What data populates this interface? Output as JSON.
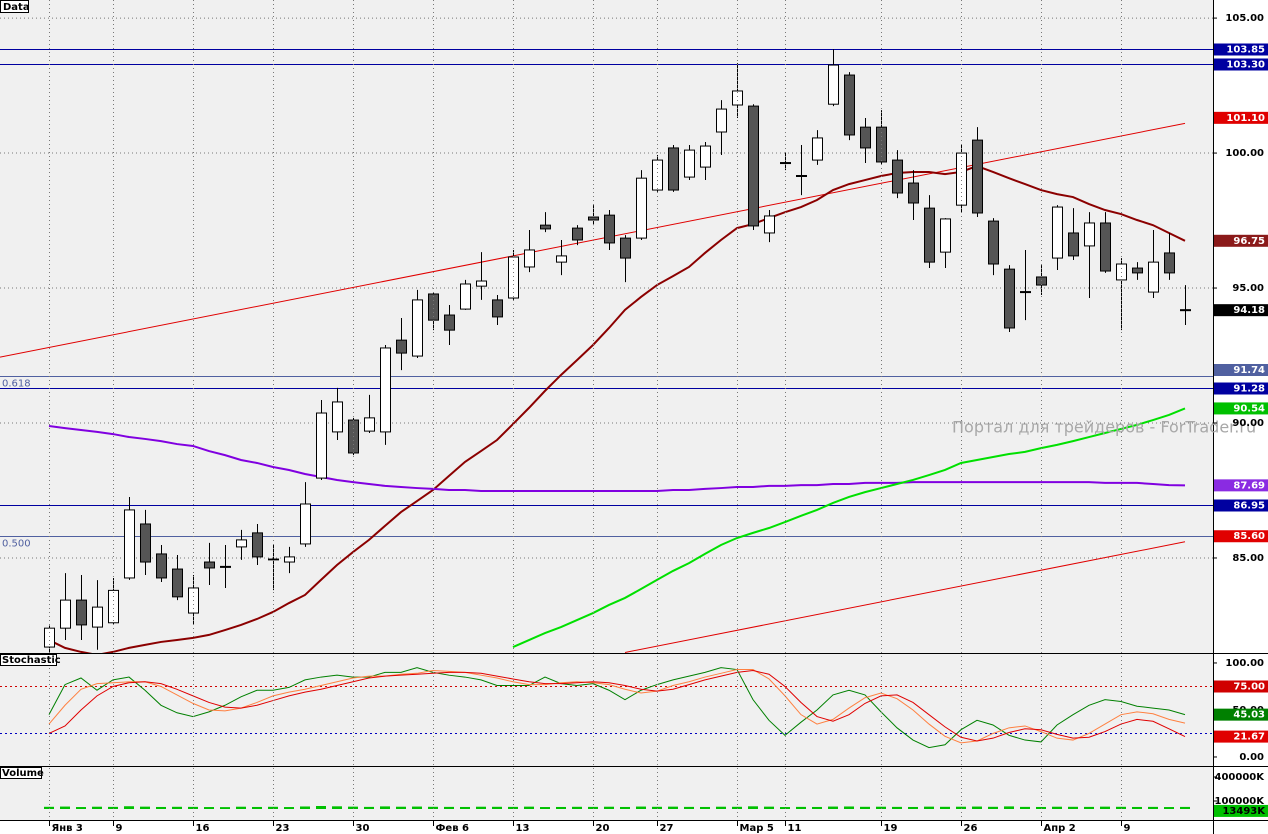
{
  "chart_data": [
    {
      "type": "candlestick",
      "title": "Data",
      "categories": [
        "Янв 3",
        null,
        null,
        null,
        "9",
        null,
        null,
        null,
        null,
        "16",
        null,
        null,
        null,
        null,
        "23",
        null,
        null,
        null,
        null,
        "30",
        null,
        null,
        null,
        null,
        "Фев 6",
        null,
        null,
        null,
        null,
        "13",
        null,
        null,
        null,
        null,
        "20",
        null,
        null,
        null,
        "27",
        null,
        null,
        null,
        null,
        "Мар 5",
        null,
        null,
        "11",
        null,
        null,
        null,
        null,
        null,
        "19",
        null,
        null,
        null,
        null,
        "26",
        null,
        null,
        null,
        null,
        "Апр 2",
        null,
        null,
        null,
        null,
        "9",
        null,
        null,
        null,
        null
      ],
      "open": [
        81.7,
        82.4,
        83.44,
        82.44,
        82.6,
        84.26,
        86.26,
        85.15,
        84.59,
        82.96,
        84.85,
        84.67,
        85.41,
        85.93,
        84.96,
        84.85,
        85.52,
        87.96,
        89.67,
        90.11,
        89.7,
        89.67,
        93.07,
        92.48,
        94.78,
        94.0,
        94.22,
        95.07,
        94.56,
        94.63,
        95.78,
        97.33,
        95.96,
        97.22,
        97.63,
        97.7,
        96.85,
        96.85,
        98.63,
        100.19,
        99.11,
        99.48,
        100.78,
        101.78,
        101.74,
        97.04,
        99.63,
        99.15,
        99.74,
        101.81,
        102.89,
        100.96,
        100.96,
        99.74,
        98.89,
        97.96,
        96.33,
        98.07,
        100.48,
        97.48,
        95.7,
        94.85,
        95.41,
        96.11,
        97.04,
        96.56,
        97.41,
        95.3,
        95.74,
        94.85,
        96.3,
        94.18
      ],
      "high": [
        82.5,
        84.44,
        84.37,
        84.18,
        84.26,
        87.26,
        86.78,
        85.48,
        85.11,
        84.37,
        85.56,
        85.48,
        86.04,
        86.26,
        85.48,
        85.41,
        87.81,
        90.85,
        91.3,
        90.19,
        91.04,
        92.89,
        93.89,
        94.93,
        94.85,
        94.37,
        95.3,
        96.33,
        94.74,
        96.41,
        97.15,
        97.81,
        96.78,
        97.33,
        98.07,
        97.89,
        96.96,
        99.37,
        99.93,
        100.3,
        100.3,
        100.41,
        101.96,
        103.33,
        101.81,
        97.89,
        100.0,
        100.3,
        100.85,
        103.85,
        103.0,
        101.3,
        101.59,
        100.11,
        99.37,
        98.44,
        97.59,
        100.3,
        100.96,
        97.59,
        95.85,
        96.41,
        95.85,
        98.07,
        97.96,
        97.81,
        97.81,
        96.11,
        95.96,
        97.15,
        97.04,
        95.11
      ],
      "low": [
        81.5,
        81.96,
        81.96,
        81.6,
        82.52,
        84.19,
        84.37,
        84.11,
        83.44,
        82.52,
        84.0,
        83.89,
        84.93,
        84.74,
        83.81,
        84.44,
        85.41,
        87.89,
        89.37,
        88.81,
        89.63,
        89.19,
        91.96,
        92.41,
        93.44,
        92.89,
        94.19,
        94.56,
        93.63,
        94.56,
        95.59,
        97.07,
        95.48,
        96.59,
        97.33,
        96.41,
        95.22,
        96.78,
        98.56,
        98.56,
        99.0,
        99.0,
        99.93,
        101.3,
        97.15,
        96.7,
        99.37,
        98.44,
        99.56,
        101.74,
        100.48,
        99.63,
        99.56,
        98.33,
        97.52,
        95.74,
        95.74,
        97.81,
        97.63,
        95.48,
        93.37,
        93.81,
        94.74,
        95.67,
        96.04,
        94.63,
        95.56,
        93.44,
        95.3,
        94.63,
        95.3,
        93.63
      ],
      "close": [
        82.4,
        83.44,
        82.52,
        83.18,
        83.8,
        86.78,
        84.85,
        84.26,
        83.56,
        83.89,
        84.63,
        84.67,
        85.67,
        85.04,
        84.93,
        85.04,
        87.0,
        90.37,
        90.78,
        88.89,
        90.19,
        92.78,
        92.59,
        94.56,
        93.81,
        93.44,
        95.15,
        95.26,
        93.93,
        96.15,
        96.41,
        97.19,
        96.19,
        96.78,
        97.52,
        96.67,
        96.11,
        99.07,
        99.74,
        98.63,
        100.11,
        100.26,
        101.63,
        102.3,
        97.3,
        97.67,
        99.63,
        99.15,
        100.56,
        103.26,
        100.67,
        100.19,
        99.67,
        98.52,
        98.15,
        95.96,
        97.56,
        100.0,
        97.78,
        95.89,
        93.52,
        94.85,
        95.11,
        98.0,
        96.19,
        97.41,
        95.63,
        95.89,
        95.56,
        95.96,
        95.56,
        94.18
      ],
      "up_color": "#ffffff",
      "down_color": "#555555",
      "last_close_color": "#000000",
      "ylim": [
        81.48,
        105.67
      ],
      "yticks": [
        {
          "value": 105,
          "label": "105.00"
        },
        {
          "value": 100,
          "label": "100.00"
        },
        {
          "value": 95,
          "label": "95.00"
        },
        {
          "value": 90,
          "label": "90.00"
        },
        {
          "value": 85,
          "label": "85.00"
        }
      ],
      "grid": true,
      "series": [
        {
          "color": "#8b0000",
          "label_color": "#8b1a1a",
          "values": [
            81.96,
            81.67,
            81.52,
            81.41,
            81.52,
            81.67,
            81.78,
            81.89,
            81.96,
            82.04,
            82.15,
            82.33,
            82.52,
            82.74,
            83.0,
            83.33,
            83.63,
            84.19,
            84.74,
            85.22,
            85.67,
            86.19,
            86.7,
            87.11,
            87.52,
            88.04,
            88.56,
            88.96,
            89.37,
            89.96,
            90.56,
            91.19,
            91.78,
            92.33,
            92.89,
            93.52,
            94.19,
            94.67,
            95.11,
            95.44,
            95.78,
            96.3,
            96.78,
            97.22,
            97.37,
            97.59,
            97.81,
            98.0,
            98.26,
            98.63,
            98.85,
            99.0,
            99.15,
            99.26,
            99.3,
            99.3,
            99.22,
            99.3,
            99.52,
            99.3,
            99.07,
            98.85,
            98.63,
            98.48,
            98.37,
            98.11,
            97.89,
            97.74,
            97.52,
            97.33,
            97.04,
            96.75
          ]
        },
        {
          "color": "#8000e0",
          "label_color": "#8a2be2",
          "values": [
            89.89,
            89.81,
            89.74,
            89.67,
            89.59,
            89.48,
            89.41,
            89.33,
            89.22,
            89.15,
            88.96,
            88.81,
            88.63,
            88.52,
            88.37,
            88.26,
            88.11,
            88.0,
            87.89,
            87.81,
            87.74,
            87.67,
            87.63,
            87.59,
            87.56,
            87.52,
            87.52,
            87.48,
            87.48,
            87.48,
            87.48,
            87.48,
            87.48,
            87.48,
            87.48,
            87.48,
            87.48,
            87.48,
            87.48,
            87.52,
            87.52,
            87.56,
            87.59,
            87.63,
            87.63,
            87.67,
            87.67,
            87.7,
            87.7,
            87.74,
            87.74,
            87.78,
            87.78,
            87.78,
            87.81,
            87.81,
            87.81,
            87.81,
            87.81,
            87.81,
            87.81,
            87.81,
            87.81,
            87.81,
            87.81,
            87.81,
            87.78,
            87.78,
            87.78,
            87.74,
            87.7,
            87.69
          ]
        },
        {
          "color": "#00e000",
          "label_color": "#00c000",
          "values": [
            null,
            null,
            null,
            null,
            null,
            null,
            null,
            null,
            null,
            null,
            null,
            null,
            null,
            null,
            null,
            null,
            null,
            null,
            null,
            null,
            null,
            null,
            null,
            null,
            null,
            null,
            null,
            null,
            null,
            81.7,
            81.96,
            82.22,
            82.44,
            82.7,
            82.96,
            83.26,
            83.52,
            83.85,
            84.19,
            84.52,
            84.81,
            85.15,
            85.48,
            85.74,
            85.93,
            86.11,
            86.33,
            86.56,
            86.78,
            87.04,
            87.26,
            87.44,
            87.59,
            87.74,
            87.89,
            88.07,
            88.26,
            88.52,
            88.63,
            88.74,
            88.85,
            88.93,
            89.07,
            89.19,
            89.33,
            89.48,
            89.63,
            89.78,
            89.93,
            90.11,
            90.3,
            90.54
          ]
        }
      ],
      "trendlines": [
        {
          "color": "#e00000",
          "x": [
            0,
            71
          ],
          "values": [
            92.8,
            101.1
          ],
          "end_label": "101.10",
          "extend": "left"
        },
        {
          "color": "#e00000",
          "x": [
            36,
            71
          ],
          "values": [
            81.5,
            85.6
          ],
          "end_label": "85.60"
        }
      ],
      "hlines": [
        {
          "value": 103.85,
          "color": "#0000a0"
        },
        {
          "value": 103.3,
          "label": "103.30",
          "color": "#0000a0"
        },
        {
          "value": 91.28,
          "color": "#0000a0"
        },
        {
          "value": 86.95,
          "color": "#0000a0"
        }
      ],
      "fib_levels": [
        {
          "name": "0.618",
          "value": 91.74,
          "color": "#5060a0"
        },
        {
          "name": "0.500",
          "value": 85.8,
          "color": "#5060a0"
        }
      ],
      "annotation": "Портал для трейдеров - ForTrader.ru"
    },
    {
      "type": "line",
      "title": "Stochastic",
      "ylim": [
        -9.6,
        110.6
      ],
      "yticks": [
        {
          "value": 100,
          "label": "100.00"
        },
        {
          "value": 50,
          "label": "50.00"
        },
        {
          "value": 0,
          "label": "0.00"
        }
      ],
      "levels": [
        {
          "value": 75,
          "label": "75.00",
          "color": "#d00000"
        },
        {
          "value": 25,
          "color": "#0000c0"
        }
      ],
      "series": [
        {
          "color": "#008000",
          "label_color": "#008000",
          "axis_label": true,
          "values": [
            45,
            77,
            84,
            71,
            82,
            85,
            71,
            55,
            47,
            43,
            48,
            55,
            64,
            71,
            71,
            74,
            82,
            85,
            87,
            85,
            85,
            90,
            90,
            95,
            90,
            87,
            85,
            82,
            76,
            76,
            76,
            85,
            78,
            76,
            78,
            71,
            61,
            71,
            77,
            82,
            86,
            90,
            95,
            93,
            61,
            39,
            23,
            37,
            50,
            66,
            71,
            66,
            48,
            31,
            18,
            10,
            13,
            29,
            39,
            34,
            23,
            18,
            16,
            34,
            45,
            55,
            61,
            59,
            54,
            52,
            50,
            45.03
          ]
        },
        {
          "color": "#ff8040",
          "axis_label": false,
          "values": [
            35,
            55,
            72,
            78,
            79,
            80,
            80,
            75,
            66,
            57,
            50,
            49,
            52,
            58,
            65,
            69,
            72,
            76,
            80,
            84,
            86,
            86,
            88,
            89,
            92,
            91,
            90,
            87,
            84,
            80,
            77,
            77,
            79,
            80,
            79,
            77,
            72,
            68,
            70,
            76,
            80,
            85,
            89,
            93,
            93,
            83,
            65,
            45,
            35,
            40,
            52,
            63,
            68,
            62,
            50,
            35,
            22,
            15,
            17,
            25,
            31,
            33,
            27,
            20,
            18,
            25,
            35,
            45,
            48,
            46,
            40,
            36
          ]
        },
        {
          "color": "#e00000",
          "label_color": "#e00000",
          "axis_label": true,
          "values": [
            25,
            33,
            50,
            65,
            75,
            79,
            80,
            78,
            72,
            65,
            58,
            53,
            52,
            55,
            60,
            65,
            69,
            72,
            76,
            80,
            84,
            86,
            87,
            88,
            89,
            90,
            90,
            89,
            86,
            83,
            80,
            78,
            78,
            79,
            80,
            79,
            76,
            72,
            70,
            72,
            77,
            82,
            86,
            90,
            92,
            88,
            75,
            58,
            43,
            38,
            45,
            57,
            65,
            66,
            58,
            45,
            32,
            21,
            17,
            20,
            26,
            30,
            29,
            24,
            20,
            21,
            27,
            35,
            40,
            38,
            30,
            21.67
          ]
        }
      ]
    },
    {
      "type": "bar",
      "title": "Volume",
      "color": "#00c000",
      "ylim": [
        -137500,
        537500
      ],
      "yticks": [
        {
          "value": 400000,
          "label": "400000K"
        },
        {
          "value": 100000,
          "label": "100000K"
        }
      ],
      "values": [
        15000,
        18000,
        12000,
        16000,
        14000,
        22000,
        17000,
        13000,
        15000,
        14000,
        12000,
        11000,
        16000,
        13000,
        15000,
        12000,
        19000,
        25000,
        21000,
        17000,
        14000,
        20000,
        16000,
        18000,
        15000,
        14000,
        13000,
        16000,
        15000,
        14000,
        17000,
        12000,
        13000,
        15000,
        14000,
        16000,
        13000,
        18000,
        15000,
        17000,
        14000,
        13000,
        16000,
        15000,
        21000,
        17000,
        12000,
        14000,
        13000,
        18000,
        19000,
        15000,
        16000,
        14000,
        13000,
        17000,
        15000,
        16000,
        18000,
        15000,
        20000,
        14000,
        13000,
        16000,
        15000,
        14000,
        17000,
        15000,
        13000,
        14000,
        12000,
        13493
      ],
      "last_value_label": "13493K"
    }
  ]
}
